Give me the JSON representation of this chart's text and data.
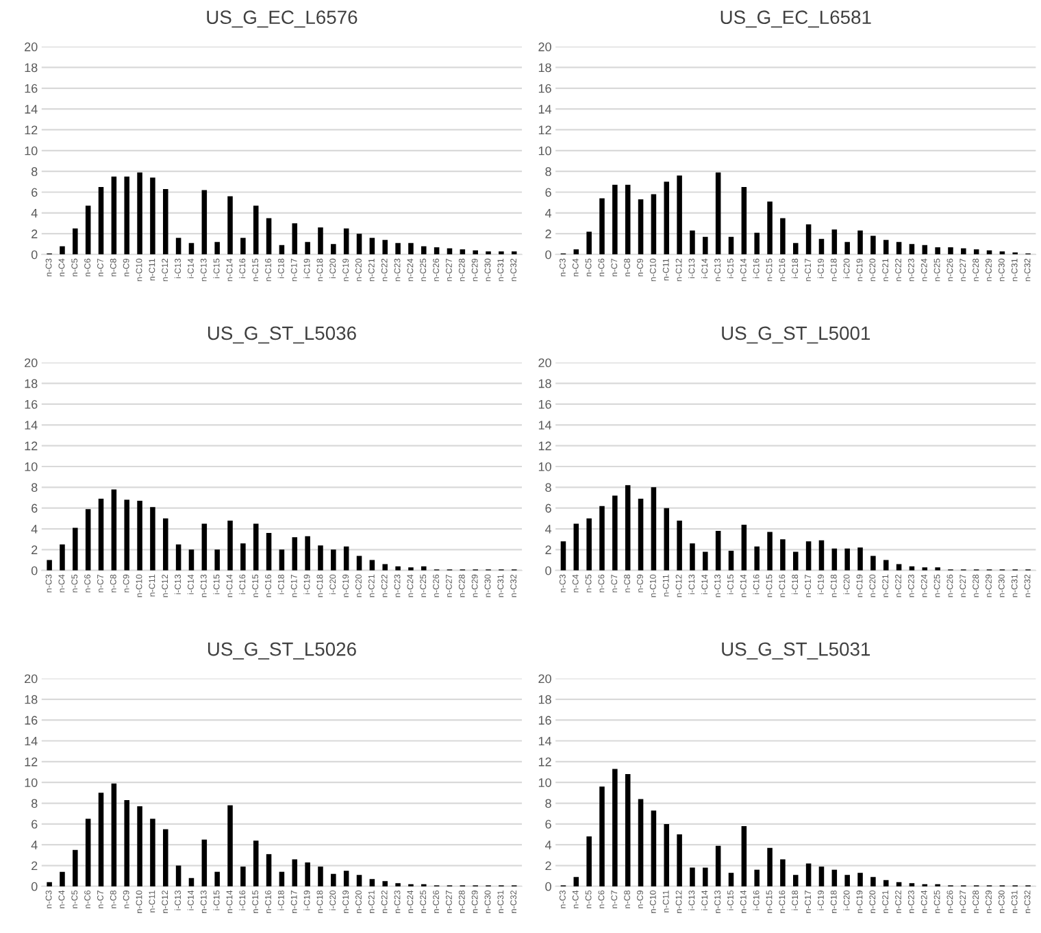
{
  "chart_data": [
    {
      "type": "bar",
      "title": "US_G_EC_L6576",
      "categories": [
        "n-C3",
        "n-C4",
        "n-C5",
        "n-C6",
        "n-C7",
        "n-C8",
        "n-C9",
        "n-C10",
        "n-C11",
        "n-C12",
        "i-C13",
        "i-C14",
        "n-C13",
        "i-C15",
        "n-C14",
        "i-C16",
        "n-C15",
        "n-C16",
        "i-C18",
        "n-C17",
        "i-C19",
        "n-C18",
        "i-C20",
        "n-C19",
        "n-C20",
        "n-C21",
        "n-C22",
        "n-C23",
        "n-C24",
        "n-C25",
        "n-C26",
        "n-C27",
        "n-C28",
        "n-C29",
        "n-C30",
        "n-C31",
        "n-C32"
      ],
      "color": "#000000",
      "ylim": [
        0,
        20
      ],
      "yticks": [
        0,
        2,
        4,
        6,
        8,
        10,
        12,
        14,
        16,
        18,
        20
      ],
      "grid": "y",
      "values": [
        0.1,
        0.8,
        2.5,
        4.7,
        6.5,
        7.5,
        7.5,
        7.9,
        7.4,
        6.3,
        1.6,
        1.1,
        6.2,
        1.2,
        5.6,
        1.6,
        4.7,
        3.5,
        0.9,
        3.0,
        1.2,
        2.6,
        1.0,
        2.5,
        2.0,
        1.6,
        1.4,
        1.1,
        1.1,
        0.8,
        0.7,
        0.6,
        0.5,
        0.4,
        0.3,
        0.3,
        0.3
      ]
    },
    {
      "type": "bar",
      "title": "US_G_EC_L6581",
      "categories": [
        "n-C3",
        "n-C4",
        "n-C5",
        "n-C6",
        "n-C7",
        "n-C8",
        "n-C9",
        "n-C10",
        "n-C11",
        "n-C12",
        "i-C13",
        "i-C14",
        "n-C13",
        "i-C15",
        "n-C14",
        "i-C16",
        "n-C15",
        "n-C16",
        "i-C18",
        "n-C17",
        "i-C19",
        "n-C18",
        "i-C20",
        "n-C19",
        "n-C20",
        "n-C21",
        "n-C22",
        "n-C23",
        "n-C24",
        "n-C25",
        "n-C26",
        "n-C27",
        "n-C28",
        "n-C29",
        "n-C30",
        "n-C31",
        "n-C32"
      ],
      "color": "#000000",
      "ylim": [
        0,
        20
      ],
      "yticks": [
        0,
        2,
        4,
        6,
        8,
        10,
        12,
        14,
        16,
        18,
        20
      ],
      "grid": "y",
      "values": [
        0.1,
        0.5,
        2.2,
        5.4,
        6.7,
        6.7,
        5.3,
        5.8,
        7.0,
        7.6,
        2.3,
        1.7,
        7.9,
        1.7,
        6.5,
        2.1,
        5.1,
        3.5,
        1.1,
        2.9,
        1.5,
        2.4,
        1.2,
        2.3,
        1.8,
        1.4,
        1.2,
        1.0,
        0.9,
        0.7,
        0.7,
        0.6,
        0.5,
        0.4,
        0.3,
        0.2,
        0.1
      ]
    },
    {
      "type": "bar",
      "title": "US_G_ST_L5036",
      "categories": [
        "n-C3",
        "n-C4",
        "n-C5",
        "n-C6",
        "n-C7",
        "n-C8",
        "n-C9",
        "n-C10",
        "n-C11",
        "n-C12",
        "i-C13",
        "i-C14",
        "n-C13",
        "i-C15",
        "n-C14",
        "i-C16",
        "n-C15",
        "n-C16",
        "i-C18",
        "n-C17",
        "i-C19",
        "n-C18",
        "i-C20",
        "n-C19",
        "n-C20",
        "n-C21",
        "n-C22",
        "n-C23",
        "n-C24",
        "n-C25",
        "n-C26",
        "n-C27",
        "n-C28",
        "n-C29",
        "n-C30",
        "n-C31",
        "n-C32"
      ],
      "color": "#000000",
      "ylim": [
        0,
        20
      ],
      "yticks": [
        0,
        2,
        4,
        6,
        8,
        10,
        12,
        14,
        16,
        18,
        20
      ],
      "grid": "y",
      "values": [
        1.0,
        2.5,
        4.1,
        5.9,
        6.9,
        7.8,
        6.8,
        6.7,
        6.1,
        5.0,
        2.5,
        2.0,
        4.5,
        2.0,
        4.8,
        2.6,
        4.5,
        3.6,
        2.0,
        3.2,
        3.3,
        2.4,
        2.0,
        2.3,
        1.4,
        1.0,
        0.6,
        0.4,
        0.3,
        0.4,
        0.1,
        0.1,
        0.1,
        0.1,
        0.1,
        0.1,
        0.1
      ]
    },
    {
      "type": "bar",
      "title": "US_G_ST_L5001",
      "categories": [
        "n-C3",
        "n-C4",
        "n-C5",
        "n-C6",
        "n-C7",
        "n-C8",
        "n-C9",
        "n-C10",
        "n-C11",
        "n-C12",
        "i-C13",
        "i-C14",
        "n-C13",
        "i-C15",
        "n-C14",
        "i-C16",
        "n-C15",
        "n-C16",
        "i-C18",
        "n-C17",
        "i-C19",
        "n-C18",
        "i-C20",
        "n-C19",
        "n-C20",
        "n-C21",
        "n-C22",
        "n-C23",
        "n-C24",
        "n-C25",
        "n-C26",
        "n-C27",
        "n-C28",
        "n-C29",
        "n-C30",
        "n-C31",
        "n-C32"
      ],
      "color": "#000000",
      "ylim": [
        0,
        20
      ],
      "yticks": [
        0,
        2,
        4,
        6,
        8,
        10,
        12,
        14,
        16,
        18,
        20
      ],
      "grid": "y",
      "values": [
        2.8,
        4.5,
        5.0,
        6.2,
        7.2,
        8.2,
        6.9,
        8.0,
        6.0,
        4.8,
        2.6,
        1.8,
        3.8,
        1.9,
        4.4,
        2.3,
        3.7,
        3.0,
        1.8,
        2.8,
        2.9,
        2.1,
        2.1,
        2.2,
        1.4,
        1.0,
        0.6,
        0.4,
        0.3,
        0.3,
        0.1,
        0.1,
        0.1,
        0.1,
        0.1,
        0.1,
        0.1
      ]
    },
    {
      "type": "bar",
      "title": "US_G_ST_L5026",
      "categories": [
        "n-C3",
        "n-C4",
        "n-C5",
        "n-C6",
        "n-C7",
        "n-C8",
        "n-C9",
        "n-C10",
        "n-C11",
        "n-C12",
        "i-C13",
        "i-C14",
        "n-C13",
        "i-C15",
        "n-C14",
        "i-C16",
        "n-C15",
        "n-C16",
        "i-C18",
        "n-C17",
        "i-C19",
        "n-C18",
        "i-C20",
        "n-C19",
        "n-C20",
        "n-C21",
        "n-C22",
        "n-C23",
        "n-C24",
        "n-C25",
        "n-C26",
        "n-C27",
        "n-C28",
        "n-C29",
        "n-C30",
        "n-C31",
        "n-C32"
      ],
      "color": "#000000",
      "ylim": [
        0,
        20
      ],
      "yticks": [
        0,
        2,
        4,
        6,
        8,
        10,
        12,
        14,
        16,
        18,
        20
      ],
      "grid": "y",
      "values": [
        0.4,
        1.4,
        3.5,
        6.5,
        9.0,
        9.9,
        8.3,
        7.7,
        6.5,
        5.5,
        2.0,
        0.8,
        4.5,
        1.4,
        7.8,
        1.9,
        4.4,
        3.1,
        1.4,
        2.6,
        2.3,
        1.9,
        1.2,
        1.5,
        1.1,
        0.7,
        0.5,
        0.3,
        0.2,
        0.2,
        0.1,
        0.1,
        0.1,
        0.1,
        0.1,
        0.1,
        0.1
      ]
    },
    {
      "type": "bar",
      "title": "US_G_ST_L5031",
      "categories": [
        "n-C3",
        "n-C4",
        "n-C5",
        "n-C6",
        "n-C7",
        "n-C8",
        "n-C9",
        "n-C10",
        "n-C11",
        "n-C12",
        "i-C13",
        "i-C14",
        "n-C13",
        "i-C15",
        "n-C14",
        "i-C16",
        "n-C15",
        "n-C16",
        "i-C18",
        "n-C17",
        "i-C19",
        "n-C18",
        "i-C20",
        "n-C19",
        "n-C20",
        "n-C21",
        "n-C22",
        "n-C23",
        "n-C24",
        "n-C25",
        "n-C26",
        "n-C27",
        "n-C28",
        "n-C29",
        "n-C30",
        "n-C31",
        "n-C32"
      ],
      "color": "#000000",
      "ylim": [
        0,
        20
      ],
      "yticks": [
        0,
        2,
        4,
        6,
        8,
        10,
        12,
        14,
        16,
        18,
        20
      ],
      "grid": "y",
      "values": [
        0.1,
        0.9,
        4.8,
        9.6,
        11.3,
        10.8,
        8.4,
        7.3,
        6.0,
        5.0,
        1.8,
        1.8,
        3.9,
        1.3,
        5.8,
        1.6,
        3.7,
        2.6,
        1.1,
        2.2,
        1.9,
        1.6,
        1.1,
        1.3,
        0.9,
        0.6,
        0.4,
        0.3,
        0.2,
        0.2,
        0.1,
        0.1,
        0.1,
        0.1,
        0.1,
        0.1,
        0.1
      ]
    }
  ]
}
